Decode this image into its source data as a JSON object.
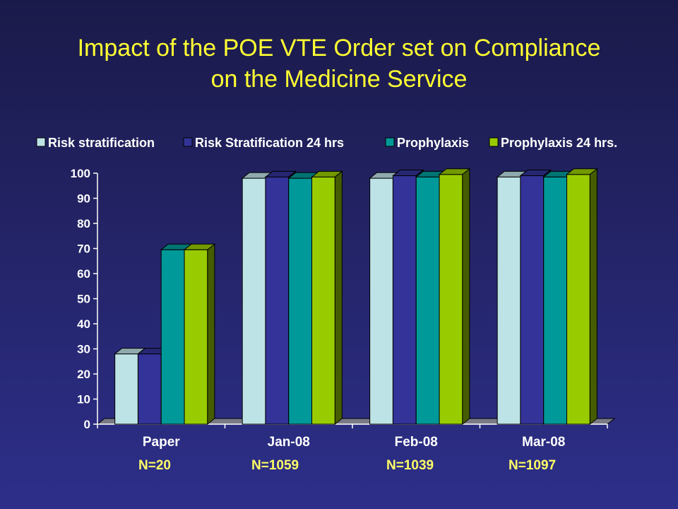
{
  "title": {
    "line1": "Impact of the POE VTE Order set on Compliance",
    "line2": "on the Medicine Service"
  },
  "colors": {
    "title": "#ffff33",
    "axis_text": "#ffffff",
    "sample_size_text": "#ffff66",
    "background_top": "#1a1a4a",
    "background_bottom": "#2d2f8a"
  },
  "sample_sizes": [
    "N=20",
    "N=1059",
    "N=1039",
    "N=1097"
  ],
  "chart_data": {
    "type": "bar",
    "style": "3d-clustered-column",
    "title": "",
    "xlabel": "",
    "ylabel": "",
    "ylim": [
      0,
      100
    ],
    "yticks": [
      0,
      10,
      20,
      30,
      40,
      50,
      60,
      70,
      80,
      90,
      100
    ],
    "categories": [
      "Paper",
      "Jan-08",
      "Feb-08",
      "Mar-08"
    ],
    "legend_position": "top",
    "grid": false,
    "series": [
      {
        "name": "Risk stratification",
        "color": "#bde3e6",
        "values": [
          28,
          98,
          98,
          98.5
        ]
      },
      {
        "name": "Risk Stratification 24 hrs",
        "color": "#333399",
        "values": [
          28,
          98.5,
          99,
          99
        ]
      },
      {
        "name": "Prophylaxis",
        "color": "#009999",
        "values": [
          69.5,
          98,
          98.5,
          98.5
        ]
      },
      {
        "name": "Prophylaxis 24 hrs.",
        "color": "#99cc00",
        "values": [
          69.5,
          98.5,
          99.5,
          99.5
        ]
      }
    ]
  }
}
